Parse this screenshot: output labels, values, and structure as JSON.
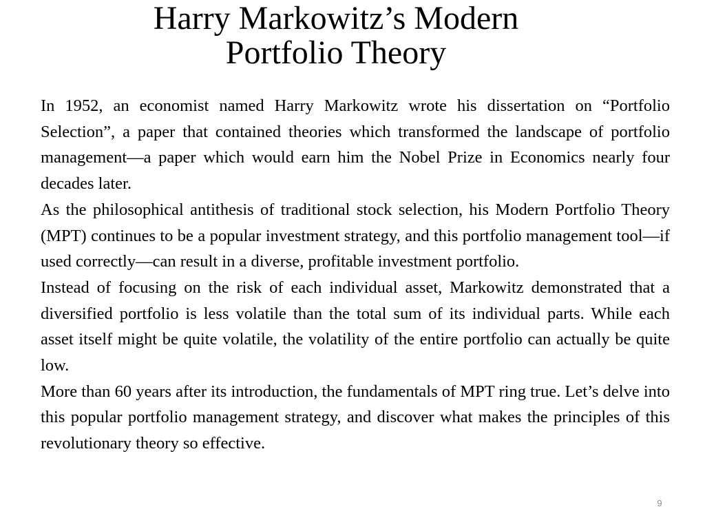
{
  "slide": {
    "title_lines": [
      "Harry Markowitz’s Modern",
      "Portfolio Theory"
    ],
    "paragraphs": [
      "In 1952, an economist named Harry Markowitz wrote his dissertation on “Portfolio Selection”, a paper that contained theories which transformed the landscape of portfolio management—a paper which would earn him the Nobel Prize in Economics nearly four decades later.",
      "As the philosophical antithesis of traditional stock selection, his Modern Portfolio Theory (MPT) continues to be a popular investment strategy, and this portfolio management tool—if used correctly—can result in a diverse, profitable investment portfolio.",
      "Instead of focusing on the risk of each individual asset, Markowitz demonstrated that a diversified portfolio is less volatile than the total sum of its individual parts. While each asset itself might be quite volatile, the volatility of the entire portfolio can actually be quite low.",
      "More than 60 years after its introduction, the fundamentals of MPT ring true. Let’s delve into this popular portfolio management strategy, and discover what makes the principles of this revolutionary theory so effective."
    ],
    "page_number": "9"
  }
}
